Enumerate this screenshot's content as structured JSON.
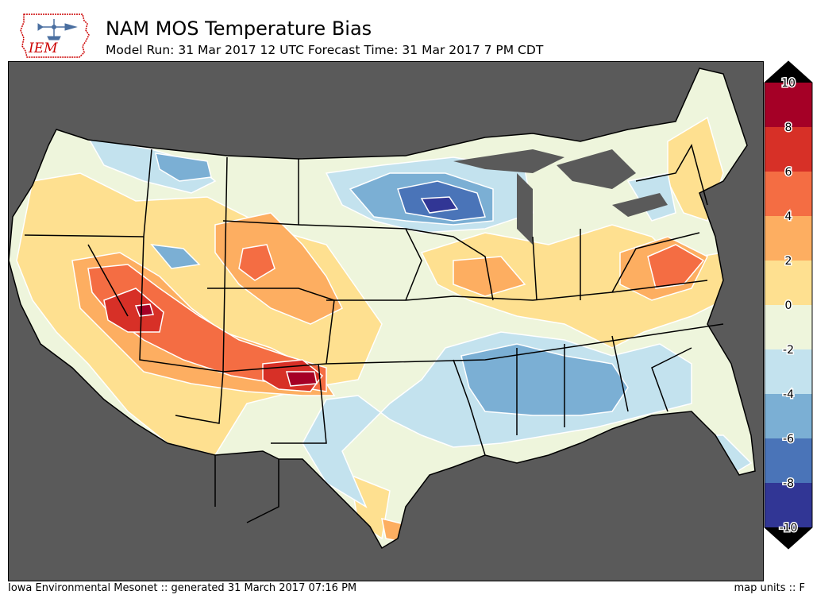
{
  "header": {
    "title": "NAM MOS Temperature Bias",
    "subtitle": "Model Run: 31 Mar 2017 12 UTC Forecast Time: 31 Mar 2017 7 PM CDT"
  },
  "logo": {
    "text": "IEM"
  },
  "footer": {
    "credit": "Iowa Environmental Mesonet :: generated 31 March 2017 07:16 PM",
    "units": "map units :: F"
  },
  "legend": {
    "tick_labels": [
      "10",
      "8",
      "6",
      "4",
      "2",
      "0",
      "-2",
      "-4",
      "-6",
      "-8",
      "-10"
    ],
    "bins": [
      {
        "range": "8 to 10",
        "color": "#a50026"
      },
      {
        "range": "6 to 8",
        "color": "#d73027"
      },
      {
        "range": "4 to 6",
        "color": "#f46d43"
      },
      {
        "range": "2 to 4",
        "color": "#fdae61"
      },
      {
        "range": "0 to 2",
        "color": "#fee090"
      },
      {
        "range": "-2 to 0",
        "color": "#eef5dc"
      },
      {
        "range": "-4 to -2",
        "color": "#c3e2ee"
      },
      {
        "range": "-6 to -4",
        "color": "#7bafd4"
      },
      {
        "range": "-8 to -6",
        "color": "#4a74b8"
      },
      {
        "range": "-10 to -8",
        "color": "#313695"
      }
    ],
    "overflow_color": "#000000"
  },
  "map": {
    "ocean_color": "#5a5a5a",
    "background_color": "#eef5dc"
  }
}
